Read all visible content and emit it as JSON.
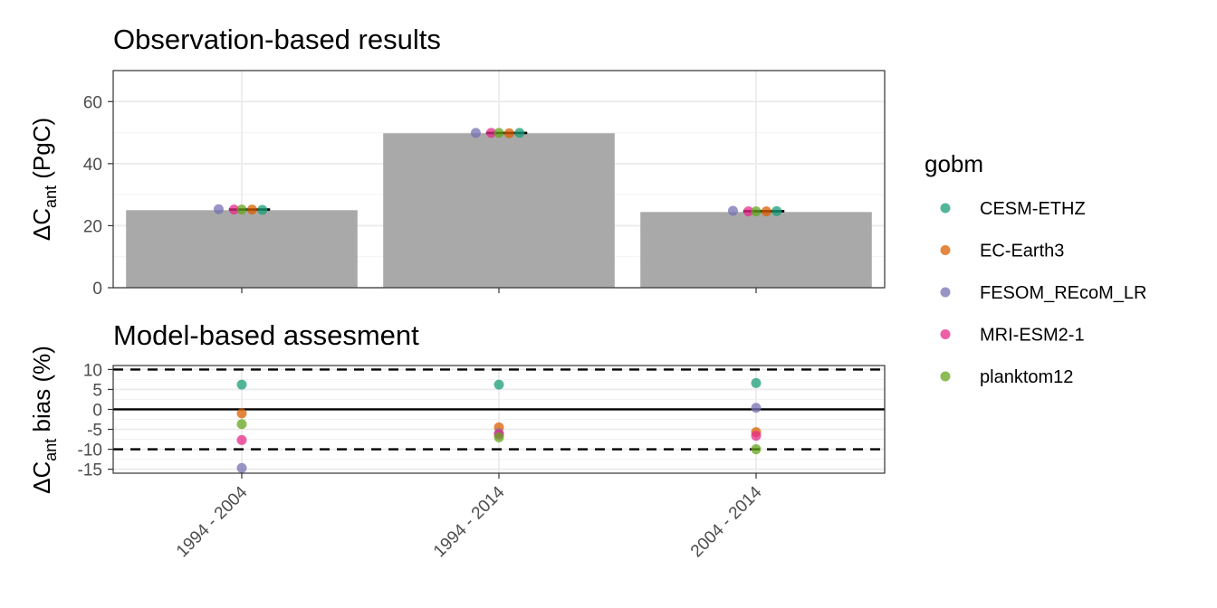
{
  "chart_data": [
    {
      "type": "bar",
      "title": "Observation-based results",
      "ylabel": "ΔC",
      "ylabel_sub": "ant",
      "ylabel_suffix": " (PgC)",
      "ylim": [
        0,
        70
      ],
      "yticks": [
        0,
        20,
        40,
        60
      ],
      "grid": true,
      "categories": [
        "1994 - 2004",
        "1994 - 2014",
        "2004 - 2014"
      ],
      "values": [
        25.0,
        49.8,
        24.4
      ],
      "bar_color": "#a9a9a9",
      "mean_line_color": "#000000",
      "series": [
        {
          "name": "CESM-ETHZ",
          "values": [
            25.1,
            49.9,
            24.7
          ]
        },
        {
          "name": "EC-Earth3",
          "values": [
            25.2,
            49.8,
            24.6
          ]
        },
        {
          "name": "FESOM_REcoM_LR",
          "values": [
            25.3,
            49.9,
            24.8
          ]
        },
        {
          "name": "MRI-ESM2-1",
          "values": [
            25.2,
            49.9,
            24.6
          ]
        },
        {
          "name": "planktom12",
          "values": [
            25.2,
            49.9,
            24.6
          ]
        }
      ]
    },
    {
      "type": "scatter",
      "title": "Model-based assesment",
      "ylabel": "ΔC",
      "ylabel_sub": "ant",
      "ylabel_suffix": " bias (%)",
      "ylim": [
        -16,
        11
      ],
      "yticks": [
        10,
        5,
        0,
        -5,
        -10,
        -15
      ],
      "ytick_labels": [
        "10",
        "5",
        "0",
        "-5",
        "-10",
        "-15"
      ],
      "grid": true,
      "reference_lines": [
        {
          "y": 10,
          "style": "dashed"
        },
        {
          "y": 0,
          "style": "solid"
        },
        {
          "y": -10,
          "style": "dashed"
        }
      ],
      "categories": [
        "1994 - 2004",
        "1994 - 2014",
        "2004 - 2014"
      ],
      "series": [
        {
          "name": "CESM-ETHZ",
          "values": [
            6.2,
            6.2,
            6.6
          ]
        },
        {
          "name": "EC-Earth3",
          "values": [
            -1.0,
            -4.5,
            -5.7
          ]
        },
        {
          "name": "FESOM_REcoM_LR",
          "values": [
            -14.7,
            -6.0,
            0.4
          ]
        },
        {
          "name": "MRI-ESM2-1",
          "values": [
            -7.7,
            -6.3,
            -6.6
          ]
        },
        {
          "name": "planktom12",
          "values": [
            -3.7,
            -7.0,
            -10.0
          ]
        }
      ]
    }
  ],
  "legend": {
    "title": "gobm",
    "position": "right",
    "items": [
      {
        "name": "CESM-ETHZ",
        "color": "#1b9e77"
      },
      {
        "name": "EC-Earth3",
        "color": "#d95f02"
      },
      {
        "name": "FESOM_REcoM_LR",
        "color": "#7570b3"
      },
      {
        "name": "MRI-ESM2-1",
        "color": "#e7298a"
      },
      {
        "name": "planktom12",
        "color": "#66a61e"
      }
    ]
  }
}
